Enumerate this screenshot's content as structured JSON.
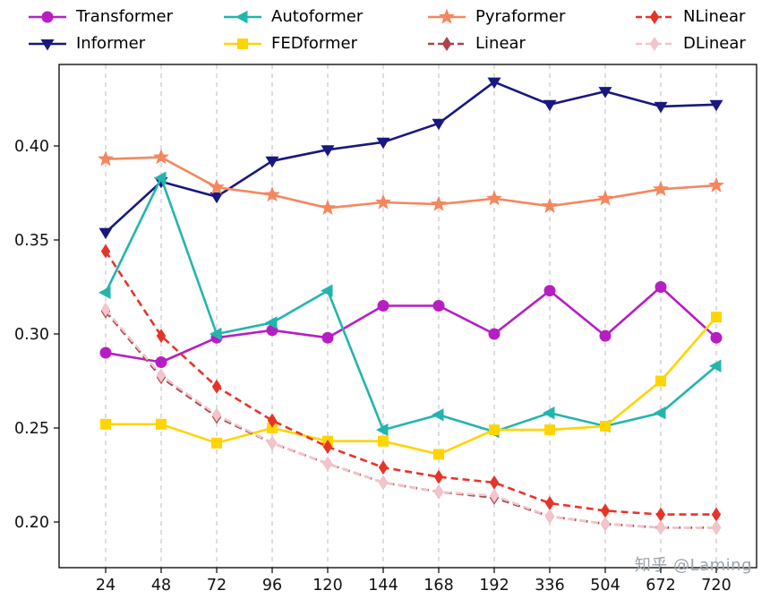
{
  "watermark": {
    "text": "知乎 @Laming",
    "color": "#9aa3ab"
  },
  "chart_data": {
    "type": "line",
    "title": "",
    "xlabel": "",
    "ylabel": "",
    "x_categories": [
      "24",
      "48",
      "72",
      "96",
      "120",
      "144",
      "168",
      "192",
      "336",
      "504",
      "672",
      "720"
    ],
    "yticks": [
      0.2,
      0.25,
      0.3,
      0.35,
      0.4
    ],
    "ylim": [
      0.176,
      0.443
    ],
    "grid": "vertical-dashed",
    "grid_color": "#c8c8c8",
    "legend_position": "top, 2 rows x 4 columns, column-major",
    "series": [
      {
        "name": "Transformer",
        "color": "#b61ec4",
        "line": "solid",
        "marker": "circle",
        "values": [
          0.29,
          0.285,
          0.298,
          0.302,
          0.298,
          0.315,
          0.315,
          0.3,
          0.323,
          0.299,
          0.325,
          0.298
        ]
      },
      {
        "name": "Informer",
        "color": "#181880",
        "line": "solid",
        "marker": "triangle-down",
        "values": [
          0.354,
          0.381,
          0.373,
          0.392,
          0.398,
          0.402,
          0.412,
          0.434,
          0.422,
          0.429,
          0.421,
          0.422
        ]
      },
      {
        "name": "Autoformer",
        "color": "#22b5ad",
        "line": "solid",
        "marker": "triangle-left",
        "values": [
          0.322,
          0.383,
          0.3,
          0.306,
          0.323,
          0.249,
          0.257,
          0.248,
          0.258,
          0.251,
          0.258,
          0.283
        ]
      },
      {
        "name": "FEDformer",
        "color": "#ffd400",
        "line": "solid",
        "marker": "square",
        "values": [
          0.252,
          0.252,
          0.242,
          0.25,
          0.243,
          0.243,
          0.236,
          0.249,
          0.249,
          0.251,
          0.275,
          0.309
        ]
      },
      {
        "name": "Pyraformer",
        "color": "#f4875f",
        "line": "solid",
        "marker": "star",
        "values": [
          0.393,
          0.394,
          0.378,
          0.374,
          0.367,
          0.37,
          0.369,
          0.372,
          0.368,
          0.372,
          0.377,
          0.379
        ]
      },
      {
        "name": "Linear",
        "color": "#aa4549",
        "line": "dashed",
        "marker": "diamond",
        "values": [
          0.312,
          0.277,
          0.256,
          0.242,
          0.231,
          0.221,
          0.216,
          0.213,
          0.203,
          0.199,
          0.197,
          0.197
        ]
      },
      {
        "name": "NLinear",
        "color": "#e73428",
        "line": "dashed",
        "marker": "diamond",
        "values": [
          0.344,
          0.299,
          0.272,
          0.254,
          0.24,
          0.229,
          0.224,
          0.221,
          0.21,
          0.206,
          0.204,
          0.204
        ]
      },
      {
        "name": "DLinear",
        "color": "#f2c4cb",
        "line": "dashed",
        "marker": "diamond",
        "values": [
          0.313,
          0.278,
          0.257,
          0.242,
          0.231,
          0.221,
          0.216,
          0.214,
          0.203,
          0.199,
          0.197,
          0.197
        ]
      }
    ]
  }
}
